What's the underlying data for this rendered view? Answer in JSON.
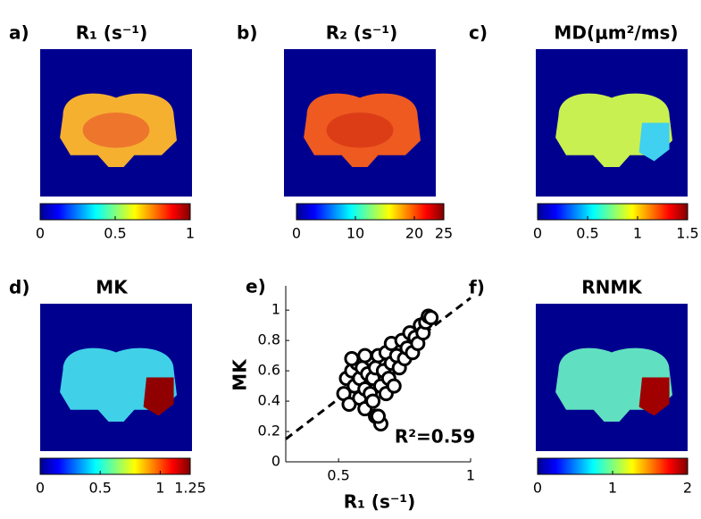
{
  "panels": [
    {
      "label": "a)",
      "title": "R₁ (s⁻¹)",
      "colorbar": {
        "lim": [
          0,
          1
        ],
        "ticks": [
          0,
          0.5,
          1
        ]
      }
    },
    {
      "label": "b)",
      "title": "R₂ (s⁻¹)",
      "colorbar": {
        "lim": [
          0,
          25
        ],
        "ticks": [
          0,
          10,
          20,
          25
        ]
      }
    },
    {
      "label": "c)",
      "title": "MD(μm²/ms)",
      "colorbar": {
        "lim": [
          0,
          1.5
        ],
        "ticks": [
          0,
          0.5,
          1,
          1.5
        ]
      }
    },
    {
      "label": "d)",
      "title": "MK",
      "colorbar": {
        "lim": [
          0,
          1.25
        ],
        "ticks": [
          0,
          0.5,
          1,
          1.25
        ]
      }
    },
    {
      "label": "f)",
      "title": "RNMK",
      "colorbar": {
        "lim": [
          0,
          2
        ],
        "ticks": [
          0,
          1,
          2
        ]
      }
    }
  ],
  "chart_data": {
    "type": "scatter",
    "label": "e)",
    "xlabel": "R₁ (s⁻¹)",
    "ylabel": "MK",
    "annotation": "R²=0.59",
    "x": [
      0.52,
      0.53,
      0.54,
      0.55,
      0.56,
      0.57,
      0.58,
      0.58,
      0.59,
      0.6,
      0.6,
      0.61,
      0.62,
      0.62,
      0.63,
      0.64,
      0.64,
      0.65,
      0.66,
      0.66,
      0.67,
      0.68,
      0.68,
      0.69,
      0.7,
      0.7,
      0.71,
      0.72,
      0.73,
      0.74,
      0.75,
      0.76,
      0.77,
      0.78,
      0.79,
      0.8,
      0.81,
      0.82,
      0.83,
      0.84,
      0.85,
      0.6,
      0.63,
      0.65,
      0.55
    ],
    "values": [
      0.45,
      0.55,
      0.38,
      0.6,
      0.5,
      0.65,
      0.42,
      0.55,
      0.62,
      0.48,
      0.35,
      0.58,
      0.68,
      0.45,
      0.55,
      0.3,
      0.62,
      0.7,
      0.5,
      0.25,
      0.6,
      0.72,
      0.45,
      0.55,
      0.65,
      0.78,
      0.5,
      0.7,
      0.62,
      0.8,
      0.68,
      0.75,
      0.85,
      0.72,
      0.82,
      0.78,
      0.9,
      0.85,
      0.92,
      0.96,
      0.95,
      0.7,
      0.4,
      0.3,
      0.68
    ],
    "fit_line": {
      "x": [
        0.3,
        1
      ],
      "values": [
        0.15,
        1.08
      ]
    },
    "xlim": [
      0.3,
      1
    ],
    "ylim": [
      0,
      1.16
    ],
    "xticks": [
      0.5,
      1
    ],
    "yticks": [
      0,
      0.2,
      0.4,
      0.6,
      0.8,
      1
    ]
  }
}
